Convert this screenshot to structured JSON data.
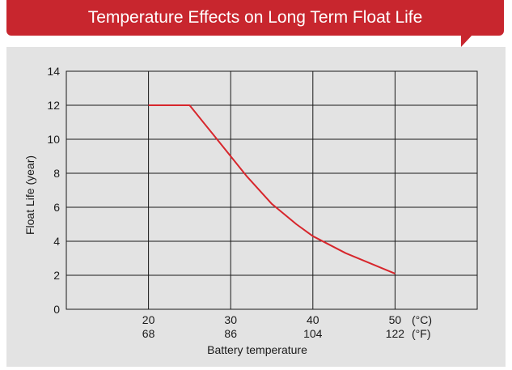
{
  "header": {
    "title": "Temperature Effects on Long Term Float Life"
  },
  "colors": {
    "banner": "#c8262e",
    "panel": "#e3e3e3",
    "line": "#d7262c",
    "grid": "#1a1a1a"
  },
  "chart_data": {
    "type": "line",
    "title": "",
    "ylabel": "Float Life (year)",
    "xlabel": "Battery temperature",
    "xlim": [
      10,
      60
    ],
    "ylim": [
      0,
      14
    ],
    "yticks": [
      0,
      2,
      4,
      6,
      8,
      10,
      12,
      14
    ],
    "xticks": [
      {
        "c": 20,
        "c_label": "20",
        "f_label": "68"
      },
      {
        "c": 30,
        "c_label": "30",
        "f_label": "86"
      },
      {
        "c": 40,
        "c_label": "40",
        "f_label": "104"
      },
      {
        "c": 50,
        "c_label": "50",
        "f_label": "122"
      }
    ],
    "unit_c": "(°C)",
    "unit_f": "(°F)",
    "grid": true,
    "series": [
      {
        "x": [
          20,
          25,
          28,
          30,
          32,
          35,
          38,
          40,
          44,
          47,
          50
        ],
        "y": [
          12,
          12,
          10.2,
          9.0,
          7.8,
          6.2,
          5.0,
          4.3,
          3.3,
          2.7,
          2.1
        ]
      }
    ]
  }
}
